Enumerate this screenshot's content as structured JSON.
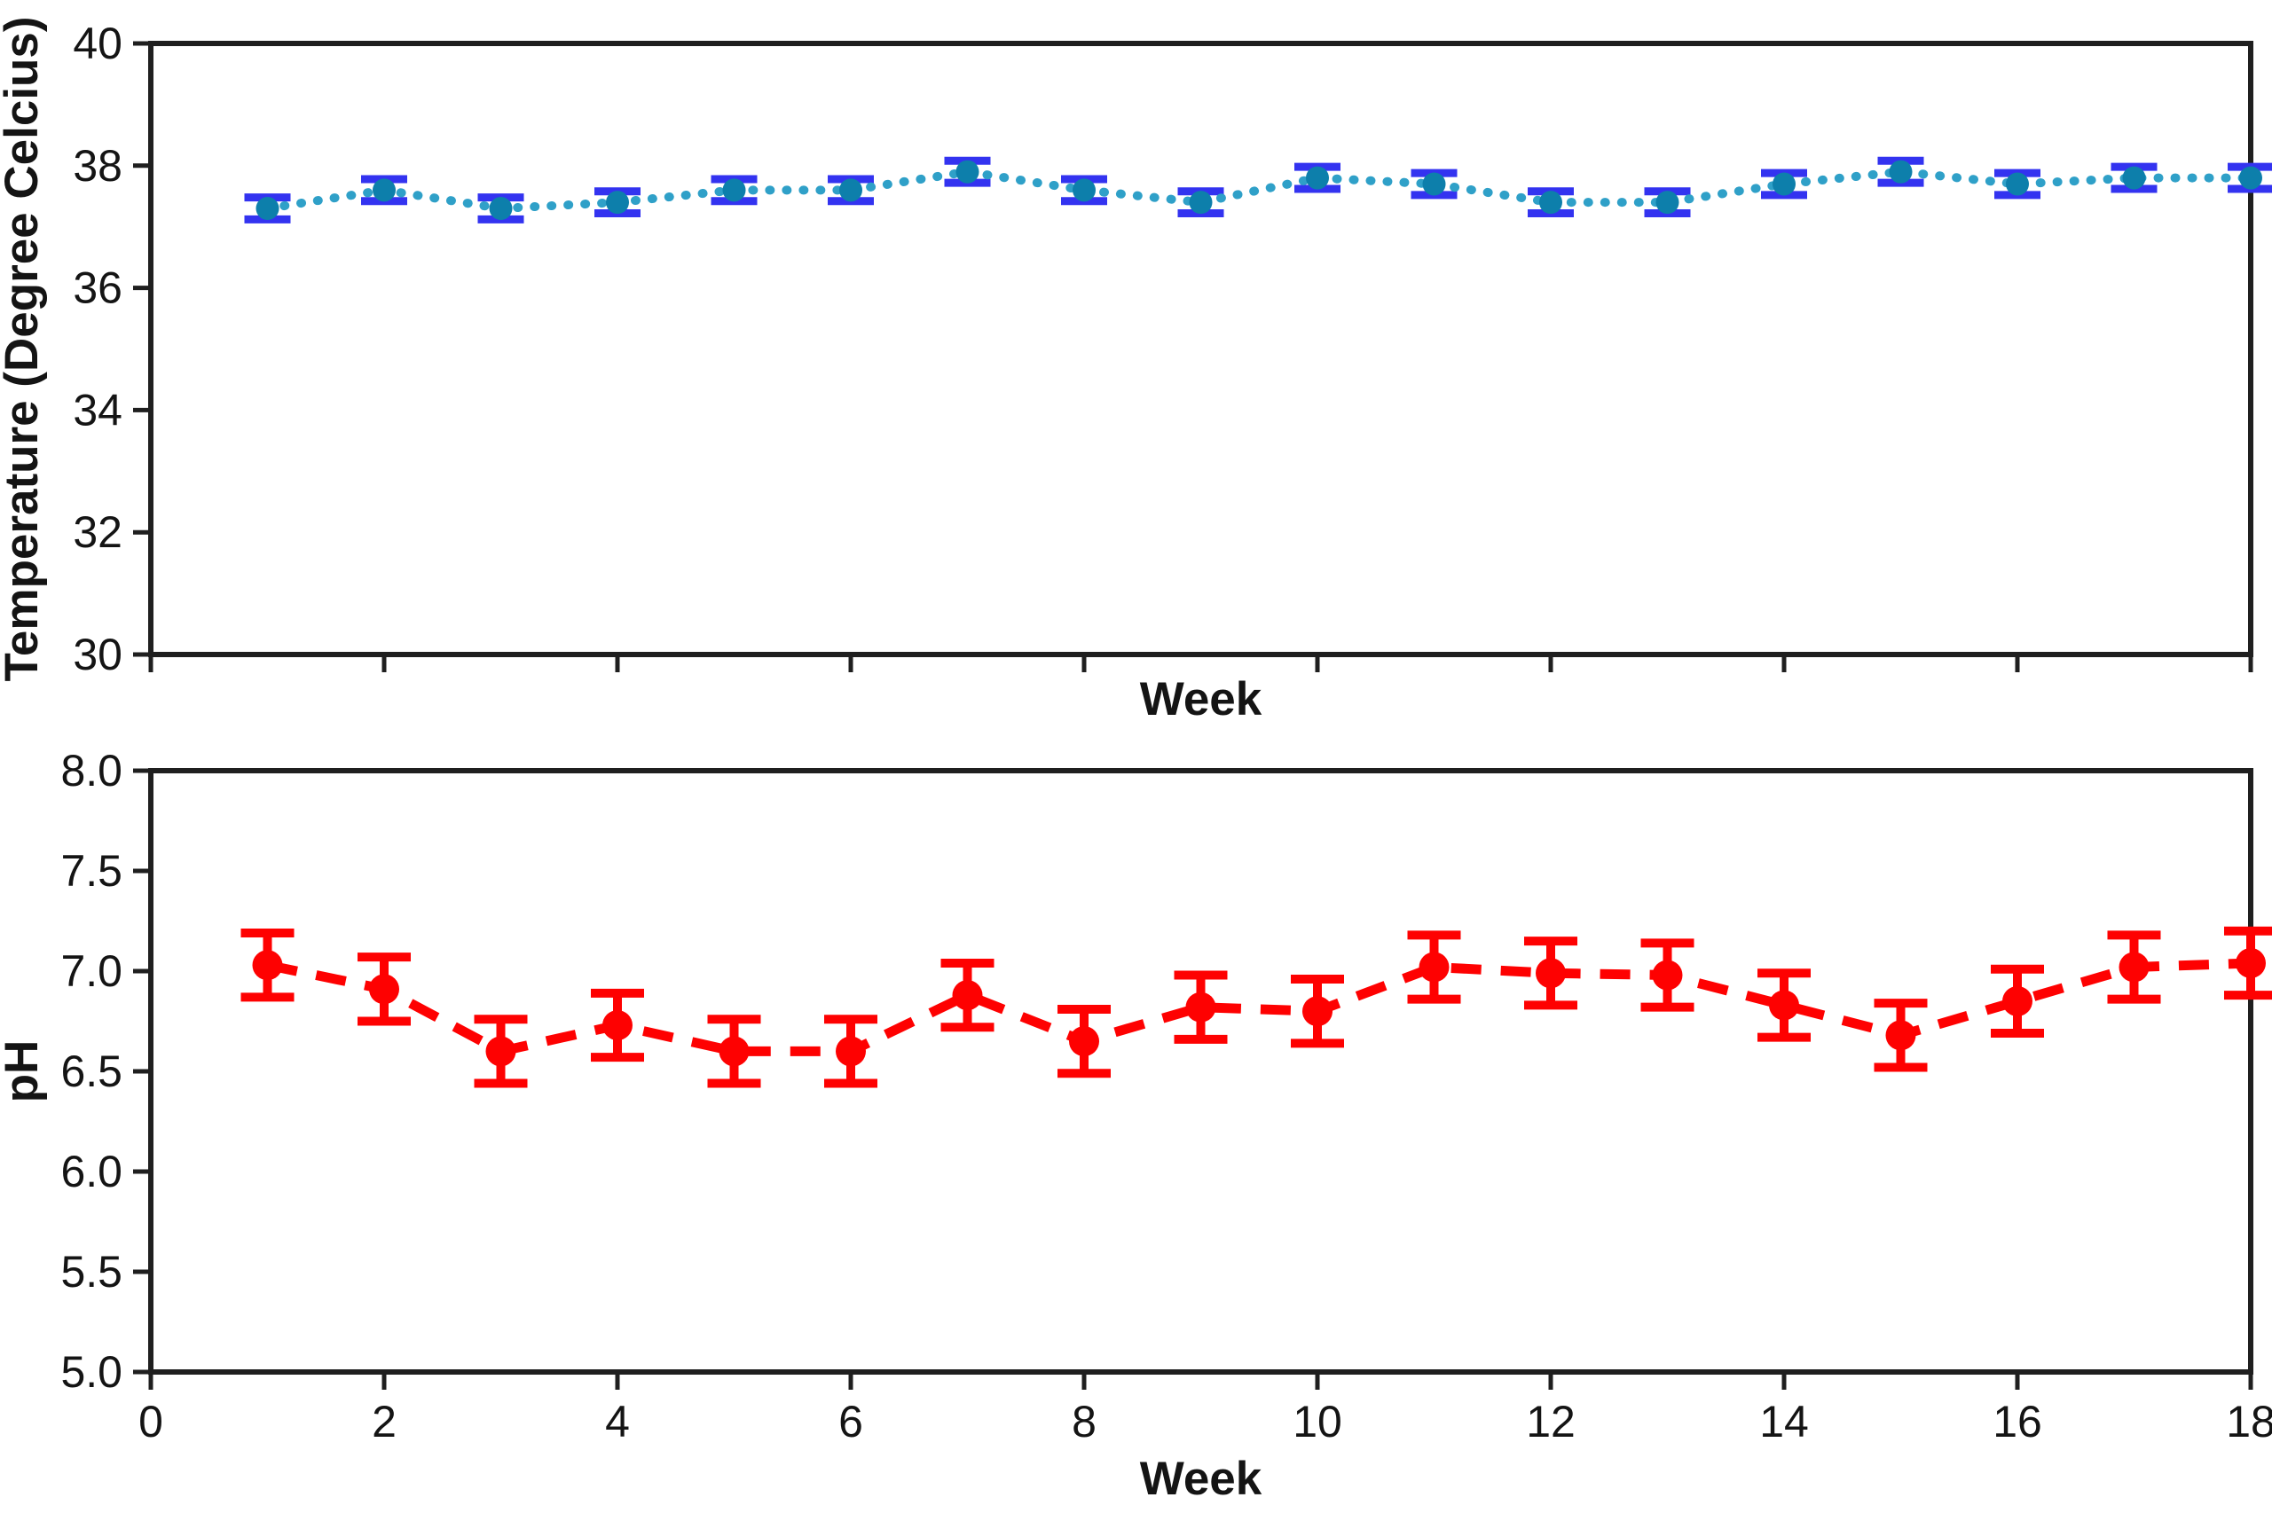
{
  "figure": {
    "background": "#ffffff",
    "axis_color": "#1f1f1f",
    "text_color": "#141414"
  },
  "chart_data": [
    {
      "type": "line",
      "id": "temperature-vs-week",
      "xlabel": "Week",
      "ylabel": "Temperature (Degree Celcius)",
      "x": [
        1,
        2,
        3,
        4,
        5,
        6,
        7,
        8,
        9,
        10,
        11,
        12,
        13,
        14,
        15,
        16,
        17,
        18
      ],
      "series": [
        {
          "name": "Temperature",
          "values": [
            37.3,
            37.6,
            37.3,
            37.4,
            37.6,
            37.6,
            37.9,
            37.6,
            37.4,
            37.8,
            37.7,
            37.4,
            37.4,
            37.7,
            37.9,
            37.7,
            37.8,
            37.8
          ],
          "yerr": 0.18
        }
      ],
      "xlim": [
        0,
        18
      ],
      "ylim": [
        30,
        40
      ],
      "xticks": [
        0,
        2,
        4,
        6,
        8,
        10,
        12,
        14,
        16,
        18
      ],
      "xtick_labels": [],
      "show_xtick_labels": false,
      "yticks": [
        30,
        32,
        34,
        36,
        38,
        40
      ],
      "ytick_labels": [
        "30",
        "32",
        "34",
        "36",
        "38",
        "40"
      ],
      "grid": false,
      "legend": null,
      "style": {
        "linestyle": "dotted",
        "line_color": "#2fa0c8",
        "line_width": 10,
        "marker": "circle",
        "marker_color": "#0d7fab",
        "marker_radius": 13,
        "error_color": "#3333f0",
        "error_line_width": 9,
        "cap_half_width": 26,
        "cap_thickness": 9
      }
    },
    {
      "type": "line",
      "id": "ph-vs-week",
      "xlabel": "Week",
      "ylabel": "pH",
      "x": [
        1,
        2,
        3,
        4,
        5,
        6,
        7,
        8,
        9,
        10,
        11,
        12,
        13,
        14,
        15,
        16,
        17,
        18
      ],
      "series": [
        {
          "name": "pH",
          "values": [
            7.03,
            6.91,
            6.6,
            6.73,
            6.6,
            6.6,
            6.88,
            6.65,
            6.82,
            6.8,
            7.02,
            6.99,
            6.98,
            6.83,
            6.68,
            6.85,
            7.02,
            7.04
          ],
          "yerr": 0.16
        }
      ],
      "xlim": [
        0,
        18
      ],
      "ylim": [
        5.0,
        8.0
      ],
      "xticks": [
        0,
        2,
        4,
        6,
        8,
        10,
        12,
        14,
        16,
        18
      ],
      "xtick_labels": [
        "0",
        "2",
        "4",
        "6",
        "8",
        "10",
        "12",
        "14",
        "16",
        "18"
      ],
      "show_xtick_labels": true,
      "yticks": [
        5.0,
        5.5,
        6.0,
        6.5,
        7.0,
        7.5,
        8.0
      ],
      "ytick_labels": [
        "5.0",
        "5.5",
        "6.0",
        "6.5",
        "7.0",
        "7.5",
        "8.0"
      ],
      "grid": false,
      "legend": null,
      "style": {
        "linestyle": "dashed",
        "line_color": "#fe0101",
        "line_width": 11,
        "marker": "circle",
        "marker_color": "#fe0101",
        "marker_radius": 17,
        "error_color": "#fe0101",
        "error_line_width": 10,
        "cap_half_width": 30,
        "cap_thickness": 10
      }
    }
  ]
}
